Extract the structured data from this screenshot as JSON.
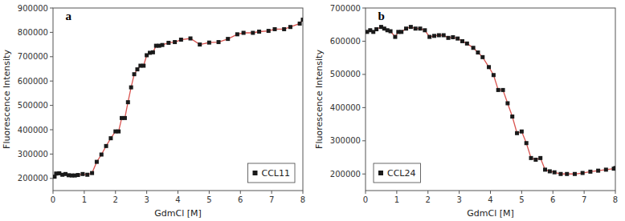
{
  "chart_data": [
    {
      "type": "scatter",
      "title": "a",
      "x_label": "GdmCl [M]",
      "y_label": "Fluorescence Intensity",
      "xlim": [
        0,
        8
      ],
      "ylim": [
        150000,
        900000
      ],
      "xticks": [
        0,
        1,
        2,
        3,
        4,
        5,
        6,
        7,
        8
      ],
      "yticks": [
        200000,
        300000,
        400000,
        500000,
        600000,
        700000,
        800000,
        900000
      ],
      "legend": "lower right",
      "x": [
        0.05,
        0.1,
        0.2,
        0.3,
        0.4,
        0.5,
        0.6,
        0.7,
        0.8,
        0.95,
        1.1,
        1.25,
        1.4,
        1.55,
        1.7,
        1.85,
        2.0,
        2.1,
        2.2,
        2.3,
        2.4,
        2.5,
        2.6,
        2.7,
        2.8,
        2.9,
        3.0,
        3.1,
        3.2,
        3.3,
        3.4,
        3.5,
        3.7,
        3.9,
        4.1,
        4.4,
        4.7,
        5.0,
        5.3,
        5.6,
        5.9,
        6.1,
        6.4,
        6.6,
        6.9,
        7.1,
        7.4,
        7.6,
        7.9,
        8.0
      ],
      "series": [
        {
          "name": "CCL11",
          "type": "scatter",
          "marker": "square",
          "color": "#1a1a1a",
          "values": [
            207000,
            220000,
            221000,
            215000,
            218000,
            213000,
            212000,
            212000,
            214000,
            218000,
            215000,
            222000,
            268000,
            298000,
            333000,
            365000,
            393000,
            393000,
            448000,
            448000,
            513000,
            574000,
            628000,
            648000,
            663000,
            663000,
            706000,
            716000,
            718000,
            745000,
            745000,
            748000,
            757000,
            760000,
            770000,
            775000,
            750000,
            758000,
            760000,
            773000,
            792000,
            798000,
            798000,
            803000,
            806000,
            813000,
            813000,
            822000,
            836000,
            852000
          ]
        },
        {
          "type": "line",
          "line_style": "solid",
          "color": "#d9534f",
          "values": [
            207000,
            220000,
            221000,
            215000,
            218000,
            213000,
            212000,
            212000,
            214000,
            218000,
            215000,
            222000,
            268000,
            298000,
            333000,
            365000,
            393000,
            393000,
            448000,
            448000,
            513000,
            574000,
            628000,
            648000,
            663000,
            663000,
            706000,
            716000,
            718000,
            745000,
            745000,
            748000,
            757000,
            760000,
            770000,
            775000,
            750000,
            758000,
            760000,
            773000,
            792000,
            798000,
            798000,
            803000,
            806000,
            813000,
            813000,
            822000,
            836000,
            852000
          ]
        }
      ]
    },
    {
      "type": "scatter",
      "title": "b",
      "x_label": "GdmCl [M]",
      "y_label": "Fluorescence Intensity",
      "xlim": [
        0,
        8
      ],
      "ylim": [
        150000,
        700000
      ],
      "xticks": [
        0,
        1,
        2,
        3,
        4,
        5,
        6,
        7,
        8
      ],
      "yticks": [
        200000,
        300000,
        400000,
        500000,
        600000,
        700000
      ],
      "legend": "lower left",
      "x": [
        0.05,
        0.15,
        0.25,
        0.35,
        0.5,
        0.6,
        0.7,
        0.8,
        0.95,
        1.05,
        1.15,
        1.3,
        1.45,
        1.6,
        1.75,
        1.9,
        2.05,
        2.2,
        2.35,
        2.5,
        2.65,
        2.8,
        2.95,
        3.1,
        3.25,
        3.45,
        3.6,
        3.75,
        3.95,
        4.1,
        4.25,
        4.4,
        4.55,
        4.7,
        4.85,
        5.0,
        5.15,
        5.3,
        5.45,
        5.6,
        5.75,
        5.9,
        6.05,
        6.25,
        6.45,
        6.7,
        6.95,
        7.2,
        7.45,
        7.7,
        7.95,
        8.0
      ],
      "series": [
        {
          "name": "CCL24",
          "type": "scatter",
          "marker": "square",
          "color": "#1a1a1a",
          "values": [
            628000,
            633000,
            628000,
            636000,
            643000,
            638000,
            633000,
            630000,
            613000,
            628000,
            628000,
            638000,
            643000,
            638000,
            638000,
            633000,
            613000,
            616000,
            618000,
            618000,
            610000,
            612000,
            608000,
            600000,
            593000,
            580000,
            566000,
            552000,
            522000,
            498000,
            453000,
            453000,
            413000,
            373000,
            323000,
            328000,
            293000,
            248000,
            243000,
            248000,
            213000,
            208000,
            205000,
            200000,
            200000,
            200000,
            203000,
            207000,
            210000,
            213000,
            216000,
            218000
          ]
        },
        {
          "type": "line",
          "line_style": "solid",
          "color": "#d9534f",
          "values": [
            628000,
            633000,
            628000,
            636000,
            643000,
            638000,
            633000,
            630000,
            613000,
            628000,
            628000,
            638000,
            643000,
            638000,
            638000,
            633000,
            613000,
            616000,
            618000,
            618000,
            610000,
            612000,
            608000,
            600000,
            593000,
            580000,
            566000,
            552000,
            522000,
            498000,
            453000,
            453000,
            413000,
            373000,
            323000,
            328000,
            293000,
            248000,
            243000,
            248000,
            213000,
            208000,
            205000,
            200000,
            200000,
            200000,
            203000,
            207000,
            210000,
            213000,
            216000,
            218000
          ]
        }
      ]
    }
  ]
}
